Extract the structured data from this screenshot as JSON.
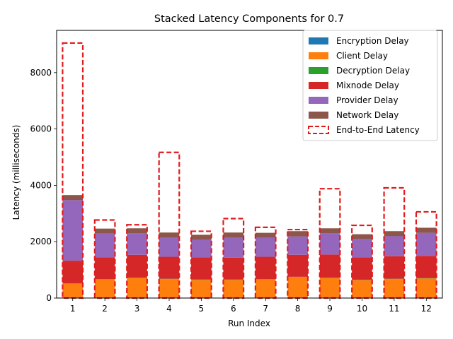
{
  "chart_data": {
    "type": "bar",
    "title": "Stacked Latency Components for 0.7",
    "xlabel": "Run Index",
    "ylabel": "Latency (milliseconds)",
    "categories": [
      "1",
      "2",
      "3",
      "4",
      "5",
      "6",
      "7",
      "8",
      "9",
      "10",
      "11",
      "12"
    ],
    "ylim": [
      0,
      9500
    ],
    "yticks": [
      0,
      2000,
      4000,
      6000,
      8000
    ],
    "ytick_labels": [
      "0",
      "2000",
      "4000",
      "6000",
      "8000"
    ],
    "stacked": true,
    "grid": false,
    "legend_position": "top-right",
    "series": [
      {
        "name": "Encryption Delay",
        "color": "#1f77b4",
        "values": [
          15,
          15,
          15,
          15,
          15,
          15,
          15,
          15,
          15,
          15,
          15,
          15
        ]
      },
      {
        "name": "Client Delay",
        "color": "#ff7f0e",
        "values": [
          500,
          650,
          700,
          660,
          630,
          630,
          650,
          730,
          700,
          620,
          660,
          680
        ]
      },
      {
        "name": "Decryption Delay",
        "color": "#2ca02c",
        "values": [
          10,
          10,
          10,
          10,
          10,
          10,
          10,
          10,
          10,
          10,
          10,
          10
        ]
      },
      {
        "name": "Mixnode Delay",
        "color": "#d62728",
        "values": [
          800,
          770,
          810,
          780,
          790,
          780,
          790,
          780,
          820,
          800,
          800,
          790
        ]
      },
      {
        "name": "Provider Delay",
        "color": "#9467bd",
        "values": [
          2150,
          850,
          770,
          680,
          620,
          710,
          680,
          650,
          760,
          650,
          710,
          820
        ]
      },
      {
        "name": "Network Delay",
        "color": "#8c564b",
        "values": [
          180,
          170,
          170,
          180,
          180,
          180,
          170,
          190,
          170,
          170,
          180,
          180
        ]
      }
    ],
    "overlay": {
      "name": "End-to-End Latency",
      "color": "#e31a1c",
      "style": "dashed-outline",
      "values": [
        9050,
        2770,
        2600,
        5170,
        2370,
        2820,
        2510,
        2430,
        3880,
        2580,
        3910,
        3060
      ]
    }
  }
}
